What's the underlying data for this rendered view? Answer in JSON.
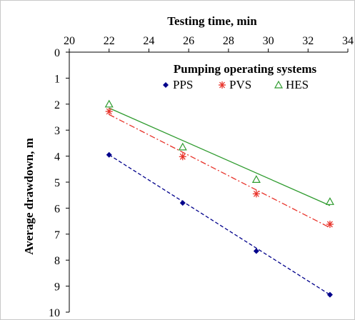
{
  "chart_data": {
    "type": "scatter",
    "title": "",
    "xlabel": "Testing time, min",
    "ylabel": "Average drawdown, m",
    "xlim": [
      20,
      34
    ],
    "ylim": [
      0,
      10
    ],
    "x_axis_position": "top",
    "y_axis_inverted": true,
    "xticks": [
      "20",
      "22",
      "24",
      "26",
      "28",
      "30",
      "32",
      "34"
    ],
    "yticks": [
      "0",
      "1",
      "2",
      "3",
      "4",
      "5",
      "6",
      "7",
      "8",
      "9",
      "10"
    ],
    "grid": false,
    "legend": {
      "title": "Pumping operating systems",
      "placement": "top-right",
      "entries": [
        "PPS",
        "PVS",
        "HES"
      ]
    },
    "series": [
      {
        "name": "PPS",
        "color": "#00008B",
        "marker": "diamond",
        "line_style": "dashed",
        "x": [
          22.0,
          25.7,
          29.4,
          33.1
        ],
        "y": [
          3.95,
          5.8,
          7.65,
          9.33
        ],
        "trend": {
          "x": [
            22.0,
            33.1
          ],
          "y": [
            3.95,
            9.33
          ]
        }
      },
      {
        "name": "PVS",
        "color": "#E8332A",
        "marker": "star",
        "line_style": "dash-dot",
        "x": [
          22.0,
          25.7,
          29.4,
          33.1
        ],
        "y": [
          2.28,
          4.02,
          5.45,
          6.62
        ],
        "trend": {
          "x": [
            22.0,
            33.1
          ],
          "y": [
            2.4,
            6.75
          ]
        }
      },
      {
        "name": "HES",
        "color": "#2E9B2E",
        "marker": "triangle-open",
        "line_style": "solid",
        "x": [
          22.0,
          25.7,
          29.4,
          33.1
        ],
        "y": [
          2.0,
          3.65,
          4.9,
          5.75
        ],
        "trend": {
          "x": [
            22.0,
            33.1
          ],
          "y": [
            2.15,
            5.9
          ]
        }
      }
    ]
  }
}
